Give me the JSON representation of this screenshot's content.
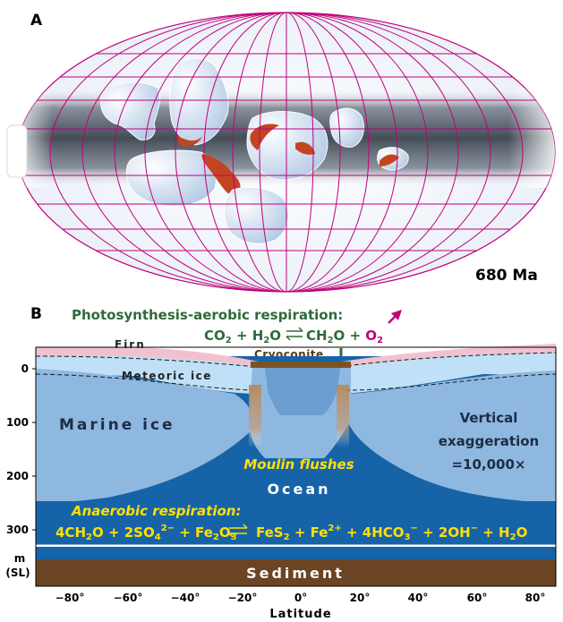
{
  "panel_a": {
    "label": "A",
    "age": "680 Ma"
  },
  "panel_b": {
    "label": "B",
    "photo_title": "Photosynthesis-aerobic respiration:",
    "photo_eq_left": "CO",
    "photo_eq_sub2": "2",
    "photo_eq_plus_h": " + H",
    "photo_eq_sub2b": "2",
    "photo_eq_o": "O",
    "photo_eq_right": "CH",
    "photo_eq_sub2c": "2",
    "photo_eq_right2": "O + ",
    "photo_eq_o2": "O",
    "photo_eq_o2_sub": "2",
    "cryoconite": "Cryoconite",
    "firn": "Firn",
    "meteoric_ice": "Meteoric ice",
    "marine_ice": "Marine ice",
    "vertical_ex_1": "Vertical",
    "vertical_ex_2": "exaggeration",
    "vertical_ex_3": "=10,000×",
    "moulin": "Moulin flushes",
    "ocean": "Ocean",
    "anaerobic_title": "Anaerobic respiration:",
    "sediment": "Sediment",
    "y_unit_1": "m",
    "y_unit_2": "(SL)",
    "y_ticks": [
      "0",
      "100",
      "200",
      "300"
    ],
    "x_ticks": [
      "−80°",
      "−60°",
      "−40°",
      "−20°",
      "0°",
      "20°",
      "40°",
      "60°",
      "80°"
    ],
    "x_title": "Latitude",
    "colors": {
      "green": "#2e6b3a",
      "magenta": "#c2007a",
      "yellow": "#ffe000",
      "ocean": "#1763a8",
      "ice": "#8fb8e0",
      "sediment": "#6b4423"
    }
  }
}
